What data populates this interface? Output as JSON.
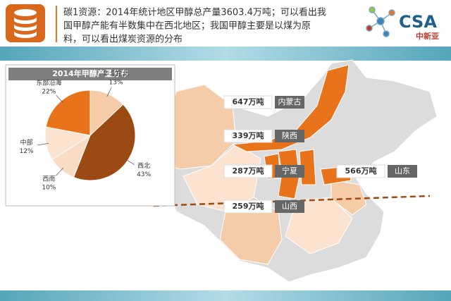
{
  "header": {
    "lines": [
      "碳1资源：2014年统计地区甲醇总产量3603.4万吨；可以看出我",
      "国甲醇产能有半数集中在西北地区；我国甲醇主要是以煤为原",
      "料，可以看出煤炭资源的分布"
    ]
  },
  "logo": {
    "text": "CSA",
    "subtext": "中新亚"
  },
  "chart_data": {
    "type": "pie",
    "title": "2014年甲醇产量分布",
    "categories": [
      "华北东北",
      "西北",
      "西南",
      "中部",
      "东部沿海"
    ],
    "values": [
      13,
      43,
      10,
      12,
      22
    ],
    "value_labels": [
      "13%",
      "43%",
      "10%",
      "12%",
      "22%"
    ],
    "colors": [
      "#f6cba8",
      "#9c4a14",
      "#f9dcc4",
      "#fbe3cf",
      "#e8731a"
    ]
  },
  "map": {
    "labels": [
      {
        "value": "647万吨",
        "province": "内蒙古"
      },
      {
        "value": "339万吨",
        "province": "陕西"
      },
      {
        "value": "287万吨",
        "province": "宁夏"
      },
      {
        "value": "566万吨",
        "province": "山东"
      },
      {
        "value": "259万吨",
        "province": "山西"
      }
    ]
  }
}
